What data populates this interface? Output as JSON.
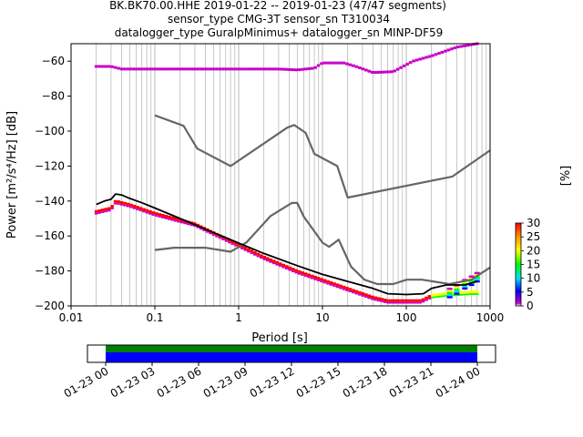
{
  "header": {
    "line1": "BK.BK70.00.HHE   2019-01-22 -- 2019-01-23  (47/47 segments)",
    "line2": "sensor_type CMG-3T sensor_sn T310034",
    "line3": "datalogger_type GuralpMinimus+ datalogger_sn MINP-DF59"
  },
  "chart_data": [
    {
      "type": "heatmap",
      "title": "",
      "xlabel": "Period [s]",
      "ylabel": "Power [m²/s⁴/Hz] [dB]",
      "xscale": "log",
      "xlim": [
        0.01,
        1000
      ],
      "ylim": [
        -200,
        -50
      ],
      "xticks": [
        0.01,
        0.1,
        1,
        10,
        100,
        1000
      ],
      "xtick_labels": [
        "0.01",
        "0.1",
        "1",
        "10",
        "100",
        "1000"
      ],
      "yticks": [
        -200,
        -180,
        -160,
        -140,
        -120,
        -100,
        -80,
        -60
      ],
      "ytick_labels": [
        "−200",
        "−180",
        "−160",
        "−140",
        "−120",
        "−100",
        "−80",
        "−60"
      ],
      "grid": "x-major-and-minor",
      "colorbar": {
        "label": "[%]",
        "range": [
          0,
          30
        ],
        "ticks": [
          0,
          5,
          10,
          15,
          20,
          25,
          30
        ],
        "colormap": "pqlx"
      },
      "series": [
        {
          "name": "",
          "role": "noise-model-high",
          "color": "#666666",
          "points": [
            [
              0.1,
              -91
            ],
            [
              0.22,
              -97
            ],
            [
              0.32,
              -110
            ],
            [
              0.8,
              -120
            ],
            [
              3.8,
              -98
            ],
            [
              4.6,
              -96.5
            ],
            [
              6.3,
              -101
            ],
            [
              8.0,
              -113
            ],
            [
              15.0,
              -120
            ],
            [
              20.0,
              -138
            ],
            [
              354.8,
              -126
            ],
            [
              1000,
              -111
            ]
          ]
        },
        {
          "name": "",
          "role": "noise-model-low",
          "color": "#666666",
          "points": [
            [
              0.1,
              -168
            ],
            [
              0.17,
              -166.7
            ],
            [
              0.4,
              -166.7
            ],
            [
              0.8,
              -169
            ],
            [
              1.24,
              -163.7
            ],
            [
              2.4,
              -148.6
            ],
            [
              4.3,
              -141.1
            ],
            [
              5.0,
              -141.1
            ],
            [
              6.0,
              -149
            ],
            [
              10.0,
              -163.8
            ],
            [
              12.0,
              -166.2
            ],
            [
              15.6,
              -162.1
            ],
            [
              21.9,
              -177.5
            ],
            [
              31.6,
              -185
            ],
            [
              45.0,
              -187.5
            ],
            [
              70.0,
              -187.5
            ],
            [
              101.0,
              -185
            ],
            [
              154.0,
              -185
            ],
            [
              328.0,
              -187.5
            ],
            [
              600.0,
              -185
            ],
            [
              1000,
              -178
            ]
          ]
        },
        {
          "name": "",
          "role": "mode",
          "color": "#000000",
          "points": [
            [
              0.02,
              -142
            ],
            [
              0.025,
              -140
            ],
            [
              0.03,
              -139
            ],
            [
              0.034,
              -136
            ],
            [
              0.04,
              -136.5
            ],
            [
              0.05,
              -138.5
            ],
            [
              0.07,
              -141
            ],
            [
              0.1,
              -144
            ],
            [
              0.2,
              -150
            ],
            [
              0.5,
              -158
            ],
            [
              1,
              -164
            ],
            [
              2,
              -170
            ],
            [
              5,
              -177
            ],
            [
              10,
              -182
            ],
            [
              20,
              -186
            ],
            [
              40,
              -190
            ],
            [
              60,
              -193
            ],
            [
              100,
              -193.5
            ],
            [
              160,
              -193
            ],
            [
              200,
              -190
            ],
            [
              300,
              -188
            ],
            [
              500,
              -188
            ],
            [
              700,
              -186
            ]
          ]
        }
      ],
      "density": {
        "high_band": [
          [
            0.02,
            -63
          ],
          [
            0.03,
            -63
          ],
          [
            0.04,
            -64.5
          ],
          [
            0.2,
            -64.5
          ],
          [
            1.0,
            -64.5
          ],
          [
            3.0,
            -64.5
          ],
          [
            5.0,
            -65
          ],
          [
            8.0,
            -64
          ],
          [
            10.0,
            -61
          ],
          [
            18.0,
            -61
          ],
          [
            25.0,
            -63
          ],
          [
            40.0,
            -66.5
          ],
          [
            70.0,
            -66
          ],
          [
            120.0,
            -60
          ],
          [
            200.0,
            -57
          ],
          [
            400.0,
            -52
          ],
          [
            700.0,
            -50
          ]
        ],
        "low_band": [
          [
            0.02,
            -146
          ],
          [
            0.03,
            -144
          ],
          [
            0.034,
            -140
          ],
          [
            0.05,
            -142
          ],
          [
            0.1,
            -147
          ],
          [
            0.3,
            -153
          ],
          [
            1,
            -165
          ],
          [
            2,
            -172
          ],
          [
            5,
            -180
          ],
          [
            10,
            -185
          ],
          [
            20,
            -190
          ],
          [
            40,
            -195
          ],
          [
            60,
            -197
          ],
          [
            100,
            -197
          ],
          [
            150,
            -197
          ],
          [
            200,
            -194
          ],
          [
            300,
            -193
          ],
          [
            600,
            -192
          ]
        ]
      }
    },
    {
      "type": "timeline",
      "title": "",
      "tick_labels": [
        "01-23 00",
        "01-23 03",
        "01-23 06",
        "01-23 09",
        "01-23 12",
        "01-23 15",
        "01-23 18",
        "01-23 21",
        "01-24 00"
      ],
      "coverage_color": "#0000ff",
      "data_color": "#008000"
    }
  ]
}
